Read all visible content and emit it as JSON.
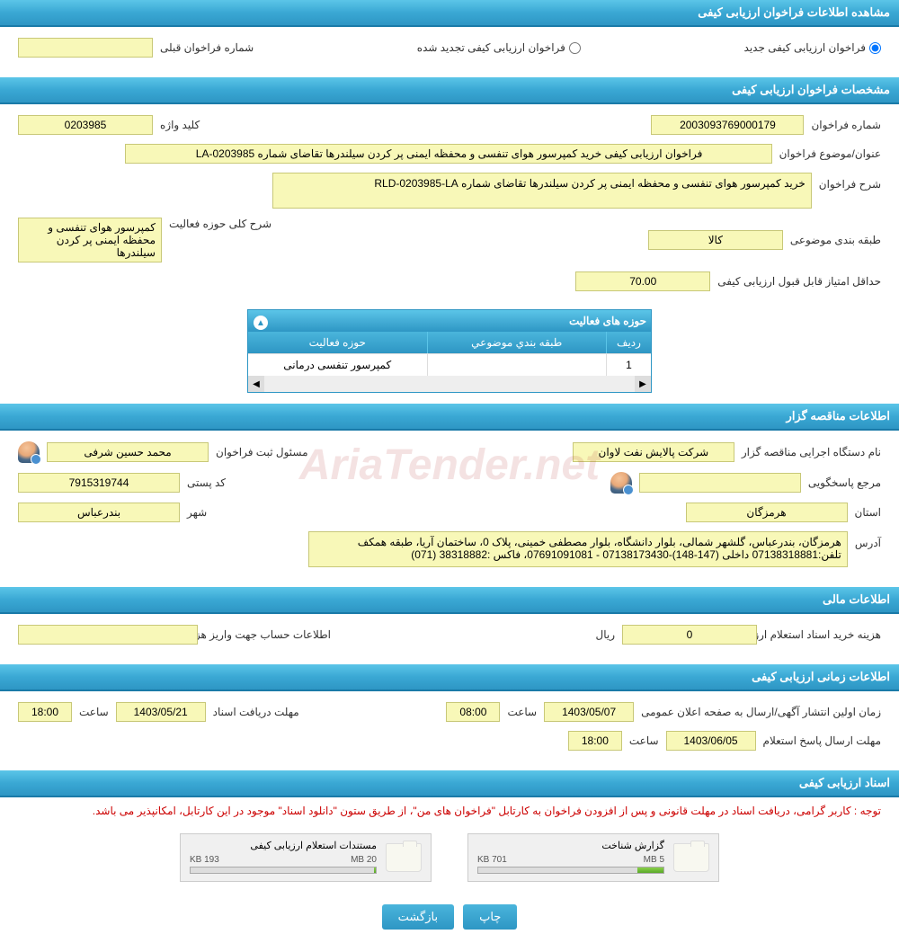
{
  "header1": "مشاهده اطلاعات فراخوان ارزیابی کیفی",
  "radio_new": "فراخوان ارزیابی کیفی جدید",
  "radio_renewed": "فراخوان ارزیابی کیفی تجدید شده",
  "prev_call_label": "شماره فراخوان قبلی",
  "prev_call_value": "",
  "header2": "مشخصات فراخوان ارزیابی کیفی",
  "call_no_label": "شماره فراخوان",
  "call_no_value": "2003093769000179",
  "keyword_label": "کلید واژه",
  "keyword_value": "0203985",
  "subject_label": "عنوان/موضوع فراخوان",
  "subject_value": "فراخوان ارزیابی کیفی خرید کمپرسور هوای تنفسی و محفظه ایمنی پر کردن سیلندرها تقاضای شماره 0203985-LA",
  "desc_label": "شرح فراخوان",
  "desc_value": "خرید کمپرسور هوای تنفسی و محفظه ایمنی پر کردن سیلندرها تقاضای شماره RLD-0203985-LA",
  "category_label": "طبقه بندی موضوعی",
  "category_value": "کالا",
  "activity_scope_label": "شرح کلی حوزه فعالیت",
  "activity_scope_value": "کمپرسور هوای تنفسی و محفظه ایمنی پر کردن سیلندرها",
  "min_score_label": "حداقل امتیاز قابل قبول ارزیابی کیفی",
  "min_score_value": "70.00",
  "grid_title": "حوزه های فعالیت",
  "grid_col1": "ردیف",
  "grid_col2": "طبقه بندي موضوعي",
  "grid_col3": "حوزه فعالیت",
  "grid_row1_1": "1",
  "grid_row1_2": "",
  "grid_row1_3": "کمپرسور تنفسی درمانی",
  "header3": "اطلاعات مناقصه گزار",
  "org_label": "نام دستگاه اجرایی مناقصه گزار",
  "org_value": "شرکت پالایش نفت لاوان",
  "registrar_label": "مسئول ثبت فراخوان",
  "registrar_value": "محمد حسین شرفی",
  "contact_label": "مرجع پاسخگویی",
  "contact_value": "",
  "postal_label": "کد پستی",
  "postal_value": "7915319744",
  "province_label": "استان",
  "province_value": "هرمزگان",
  "city_label": "شهر",
  "city_value": "بندرعباس",
  "address_label": "آدرس",
  "address_value": "هرمزگان، بندرعباس، گلشهر شمالی، بلوار دانشگاه، بلوار مصطفی خمینی، پلاک 0، ساختمان آریا، طبقه همکف تلفن:07138318881 داخلی (147-148)-07138173430 - 07691091081، فاکس :38318882 (071)",
  "header4": "اطلاعات مالی",
  "purchase_cost_label": "هزینه خرید اسناد استعلام ارزیابی کیفی",
  "purchase_cost_value": "0",
  "rial": "ریال",
  "account_info_label": "اطلاعات حساب جهت واریز هزینه خرید اسناد",
  "account_info_value": "",
  "header5": "اطلاعات زمانی ارزیابی کیفی",
  "pub_date_label": "زمان اولین انتشار آگهی/ارسال به صفحه اعلان عمومی",
  "pub_date_value": "1403/05/07",
  "pub_time_label": "ساعت",
  "pub_time_value": "08:00",
  "deadline_label": "مهلت دریافت اسناد",
  "deadline_value": "1403/05/21",
  "deadline_time_label": "ساعت",
  "deadline_time_value": "18:00",
  "response_label": "مهلت ارسال پاسخ استعلام",
  "response_value": "1403/06/05",
  "response_time_label": "ساعت",
  "response_time_value": "18:00",
  "header6": "اسناد ارزیابی کیفی",
  "notice_text": "توجه : کاربر گرامی، دریافت اسناد در مهلت قانونی و پس از افزودن فراخوان به کارتابل \"فراخوان های من\"، از طریق ستون \"دانلود اسناد\" موجود در این کارتابل، امکانپذیر می باشد.",
  "file1_name": "گزارش شناخت",
  "file1_size": "701 KB",
  "file1_total": "5 MB",
  "file1_pct": 14,
  "file2_name": "مستندات استعلام ارزیابی کیفی",
  "file2_size": "193 KB",
  "file2_total": "20 MB",
  "file2_pct": 1,
  "btn_print": "چاپ",
  "btn_back": "بازگشت",
  "watermark": "AriaTender.net"
}
